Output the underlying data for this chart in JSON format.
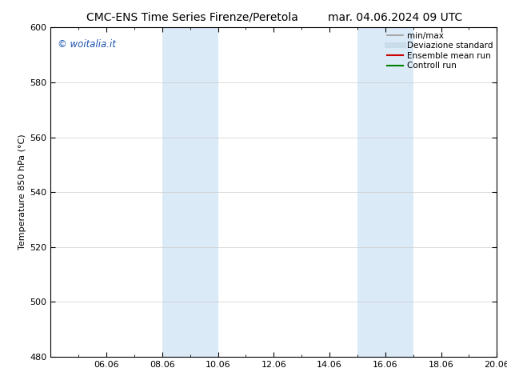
{
  "title_left": "CMC-ENS Time Series Firenze/Peretola",
  "title_right": "mar. 04.06.2024 09 UTC",
  "ylabel": "Temperature 850 hPa (°C)",
  "ylim": [
    480,
    600
  ],
  "yticks": [
    480,
    500,
    520,
    540,
    560,
    580,
    600
  ],
  "total_hours": 384,
  "xtick_labels": [
    "06.06",
    "08.06",
    "10.06",
    "12.06",
    "14.06",
    "16.06",
    "18.06",
    "20.06"
  ],
  "xtick_hours": [
    48,
    96,
    144,
    192,
    240,
    288,
    336,
    384
  ],
  "shaded_bands": [
    {
      "x_start_hours": 96,
      "x_end_hours": 144,
      "color": "#dbeaf7"
    },
    {
      "x_start_hours": 264,
      "x_end_hours": 312,
      "color": "#dbeaf7"
    }
  ],
  "watermark_text": "© woitalia.it",
  "watermark_color": "#1a52b0",
  "legend_entries": [
    {
      "label": "min/max",
      "color": "#999999",
      "lw": 1.2,
      "ls": "-"
    },
    {
      "label": "Deviazione standard",
      "color": "#c8dcea",
      "lw": 5,
      "ls": "-"
    },
    {
      "label": "Ensemble mean run",
      "color": "#cc0000",
      "lw": 1.5,
      "ls": "-"
    },
    {
      "label": "Controll run",
      "color": "#008000",
      "lw": 1.5,
      "ls": "-"
    }
  ],
  "background_color": "#ffffff",
  "plot_bg_color": "#ffffff",
  "grid_color": "#cccccc",
  "title_fontsize": 10,
  "ylabel_fontsize": 8,
  "tick_fontsize": 8,
  "legend_fontsize": 7.5,
  "watermark_fontsize": 8.5
}
